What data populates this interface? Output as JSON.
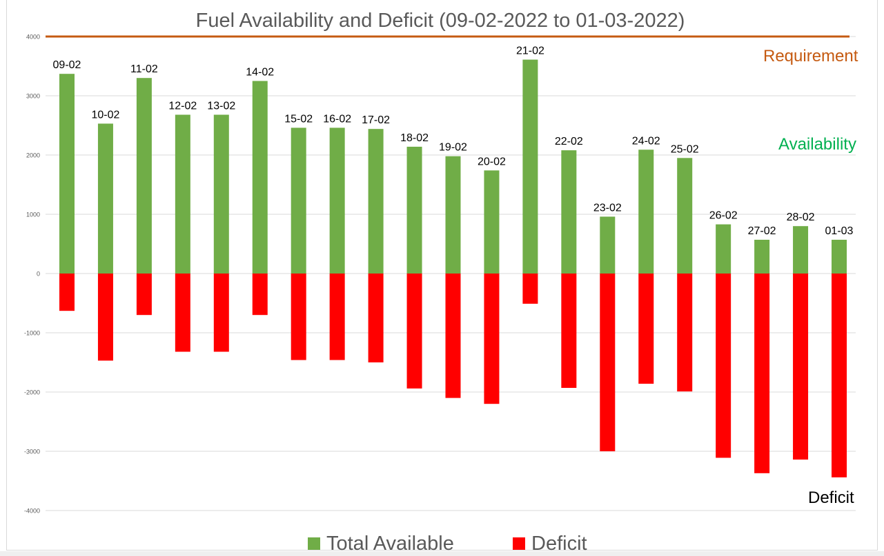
{
  "chart_data": {
    "type": "bar",
    "title": "Fuel Availability and Deficit (09-02-2022 to 01-03-2022)",
    "categories": [
      "09-02",
      "10-02",
      "11-02",
      "12-02",
      "13-02",
      "14-02",
      "15-02",
      "16-02",
      "17-02",
      "18-02",
      "19-02",
      "20-02",
      "21-02",
      "22-02",
      "23-02",
      "24-02",
      "25-02",
      "26-02",
      "27-02",
      "28-02",
      "01-03"
    ],
    "series": [
      {
        "name": "Total Available",
        "color": "#70ad47",
        "values": [
          3370,
          2530,
          3300,
          2680,
          2680,
          3250,
          2460,
          2460,
          2440,
          2140,
          1980,
          1740,
          3610,
          2080,
          960,
          2090,
          1950,
          830,
          570,
          800,
          570
        ]
      },
      {
        "name": "Deficit",
        "color": "#ff0000",
        "values": [
          -630,
          -1470,
          -700,
          -1320,
          -1320,
          -700,
          -1460,
          -1460,
          -1500,
          -1940,
          -2100,
          -2200,
          -510,
          -1930,
          -3000,
          -1860,
          -1990,
          -3110,
          -3370,
          -3140,
          -3440
        ]
      }
    ],
    "requirement_line": {
      "value": 4000,
      "color": "#c55a11"
    },
    "yticks": [
      "4000",
      "3000",
      "2000",
      "1000",
      "0",
      "-1000",
      "-2000",
      "-3000",
      "-4000"
    ],
    "ylim": [
      -4000,
      4000
    ],
    "grid": true,
    "legend": "bottom",
    "annotations": {
      "requirement": "Requirement",
      "availability": "Availability",
      "deficit": "Deficit"
    }
  }
}
